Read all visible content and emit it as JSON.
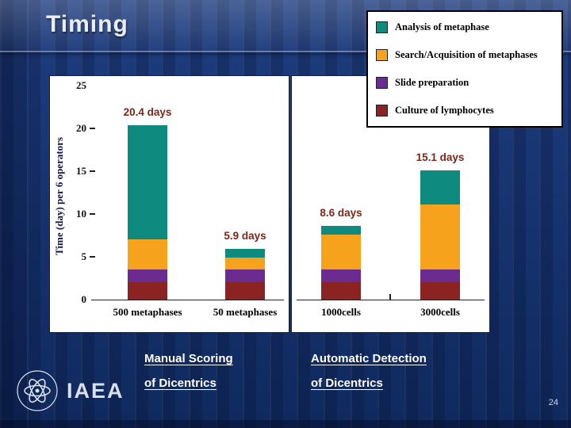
{
  "slide": {
    "title": "Timing",
    "page_number": "24"
  },
  "legend": {
    "items": [
      {
        "key": "analysis",
        "label": "Analysis of metaphase",
        "color": "#0f8a7e"
      },
      {
        "key": "search",
        "label": "Search/Acquisition of metaphases",
        "color": "#f6a21d"
      },
      {
        "key": "slide-preparation",
        "label": "Slide preparation",
        "color": "#6a2c90"
      },
      {
        "key": "culture",
        "label": "Culture of lymphocytes",
        "color": "#8b2323"
      }
    ]
  },
  "chart_data": {
    "type": "bar",
    "stacked": true,
    "title": "Timing",
    "ylabel": "Time (day) per 6 operators",
    "xlabel": "",
    "ylim": [
      0,
      25
    ],
    "yticks": [
      0,
      5,
      10,
      15,
      20,
      25
    ],
    "grid": false,
    "legend_position": "top-right",
    "panels": [
      {
        "name": "Manual Scoring of Dicentrics",
        "categories": [
          "500 metaphases",
          "50 metaphases"
        ],
        "totals": [
          20.4,
          5.9
        ],
        "total_labels": [
          "20.4 days",
          "5.9 days"
        ],
        "series": [
          {
            "key": "culture",
            "name": "Culture of lymphocytes",
            "color": "#8b2323",
            "values": [
              2.0,
              2.0
            ]
          },
          {
            "key": "slide-preparation",
            "name": "Slide preparation",
            "color": "#6a2c90",
            "values": [
              1.5,
              1.5
            ]
          },
          {
            "key": "search",
            "name": "Search/Acquisition of metaphases",
            "color": "#f6a21d",
            "values": [
              3.5,
              1.4
            ]
          },
          {
            "key": "analysis",
            "name": "Analysis of metaphase",
            "color": "#0f8a7e",
            "values": [
              13.4,
              1.0
            ]
          }
        ]
      },
      {
        "name": "Automatic Detection of Dicentrics",
        "categories": [
          "1000cells",
          "3000cells"
        ],
        "totals": [
          8.6,
          15.1
        ],
        "total_labels": [
          "8.6 days",
          "15.1 days"
        ],
        "series": [
          {
            "key": "culture",
            "name": "Culture of lymphocytes",
            "color": "#8b2323",
            "values": [
              2.0,
              2.0
            ]
          },
          {
            "key": "slide-preparation",
            "name": "Slide preparation",
            "color": "#6a2c90",
            "values": [
              1.5,
              1.5
            ]
          },
          {
            "key": "search",
            "name": "Search/Acquisition of metaphases",
            "color": "#f6a21d",
            "values": [
              4.1,
              7.6
            ]
          },
          {
            "key": "analysis",
            "name": "Analysis of metaphase",
            "color": "#0f8a7e",
            "values": [
              1.0,
              4.0
            ]
          }
        ]
      }
    ]
  },
  "captions": {
    "manual": {
      "line1": "Manual Scoring",
      "line2": "of Dicentrics"
    },
    "automatic": {
      "line1": "Automatic Detection",
      "line2": "of Dicentrics"
    }
  },
  "footer": {
    "logo_text": "IAEA"
  }
}
